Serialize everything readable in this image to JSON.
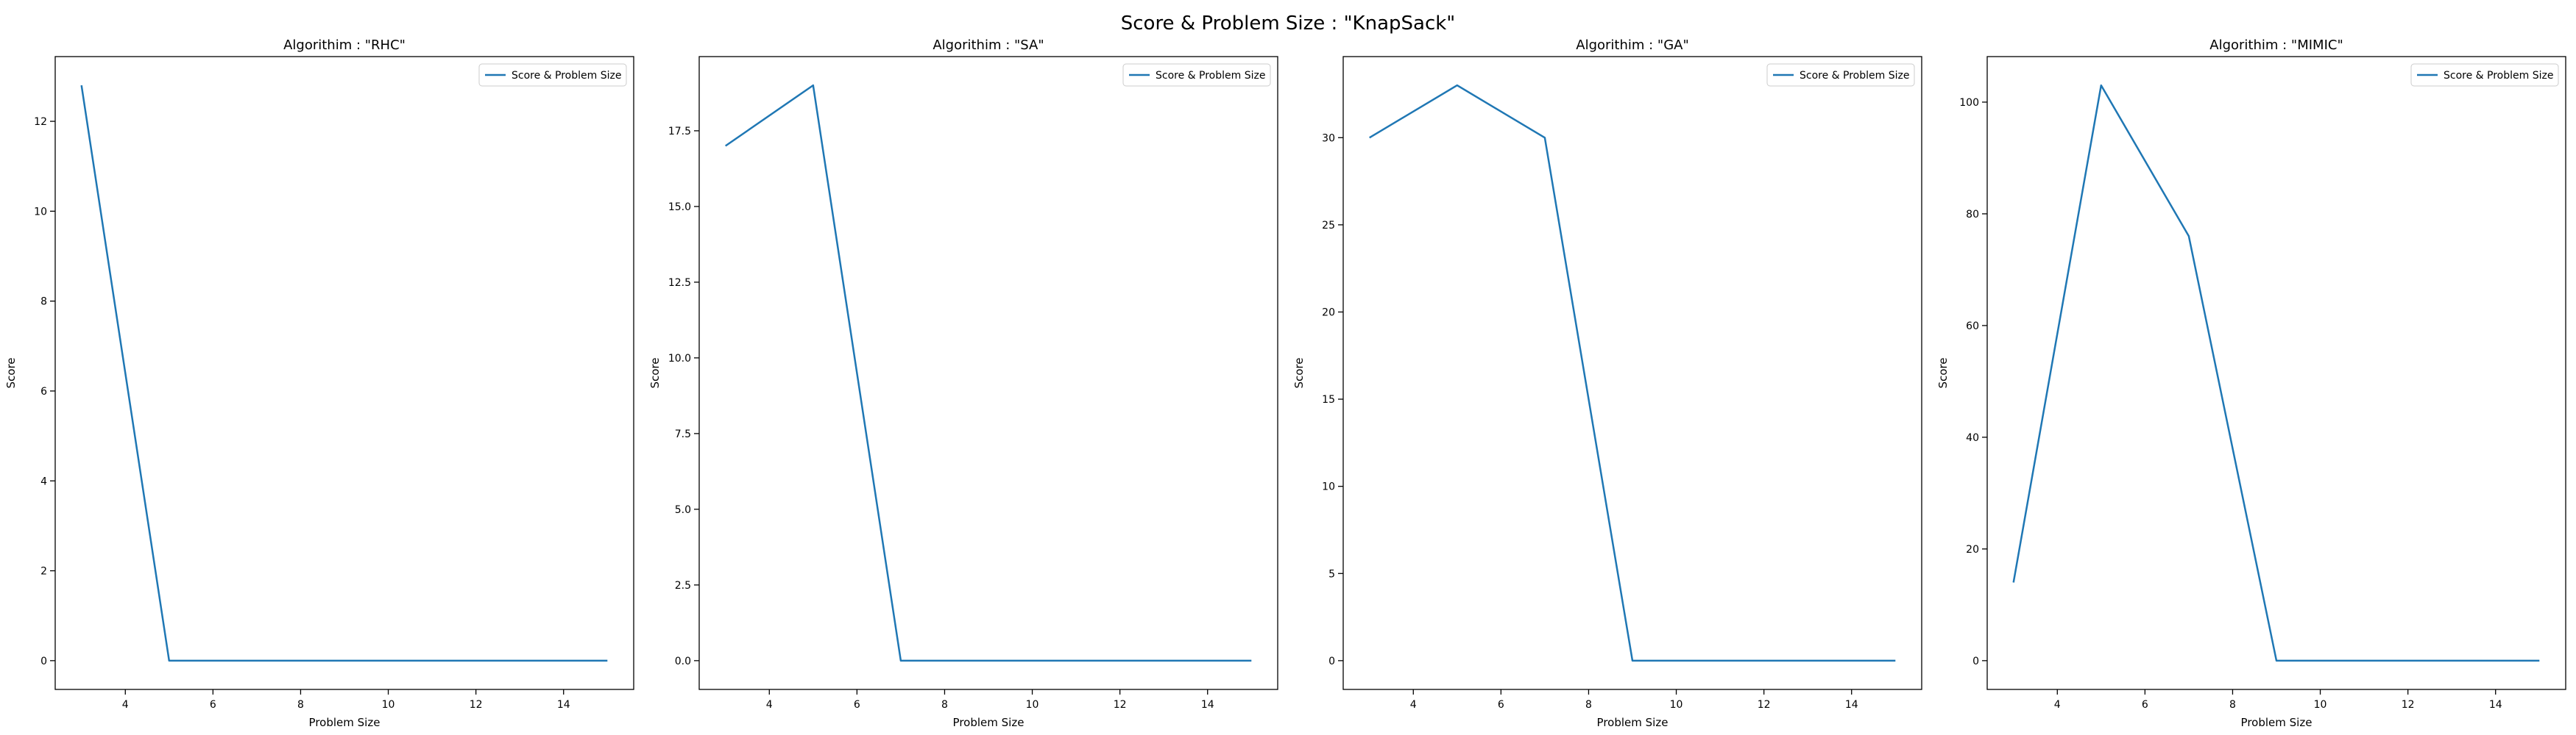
{
  "figure": {
    "title": "Score & Problem Size : \"KnapSack\""
  },
  "chart_data": [
    {
      "type": "line",
      "title": "Algorithim : \"RHC\"",
      "xlabel": "Problem Size",
      "ylabel": "Score",
      "legend": "top-right",
      "grid": false,
      "x": [
        3,
        5,
        7,
        9,
        11,
        13,
        15
      ],
      "series": [
        {
          "name": "Score & Problem Size",
          "color": "#1f77b4",
          "values": [
            12.8,
            0,
            0,
            0,
            0,
            0,
            0
          ]
        }
      ],
      "xlim": [
        2.4,
        15.6
      ],
      "ylim": [
        -0.64,
        13.44
      ],
      "xticks": [
        4,
        6,
        8,
        10,
        12,
        14
      ],
      "yticks": [
        0,
        2,
        4,
        6,
        8,
        10,
        12
      ],
      "ytick_labels": [
        "0",
        "2",
        "4",
        "6",
        "8",
        "10",
        "12"
      ]
    },
    {
      "type": "line",
      "title": "Algorithim : \"SA\"",
      "xlabel": "Problem Size",
      "ylabel": "Score",
      "legend": "top-right",
      "grid": false,
      "x": [
        3,
        5,
        7,
        9,
        11,
        13,
        15
      ],
      "series": [
        {
          "name": "Score & Problem Size",
          "color": "#1f77b4",
          "values": [
            17,
            19,
            0,
            0,
            0,
            0,
            0
          ]
        }
      ],
      "xlim": [
        2.4,
        15.6
      ],
      "ylim": [
        -0.95,
        19.95
      ],
      "xticks": [
        4,
        6,
        8,
        10,
        12,
        14
      ],
      "yticks": [
        0,
        2.5,
        5,
        7.5,
        10,
        12.5,
        15,
        17.5
      ],
      "ytick_labels": [
        "0.0",
        "2.5",
        "5.0",
        "7.5",
        "10.0",
        "12.5",
        "15.0",
        "17.5"
      ]
    },
    {
      "type": "line",
      "title": "Algorithim : \"GA\"",
      "xlabel": "Problem Size",
      "ylabel": "Score",
      "legend": "top-right",
      "grid": false,
      "x": [
        3,
        5,
        7,
        9,
        11,
        13,
        15
      ],
      "series": [
        {
          "name": "Score & Problem Size",
          "color": "#1f77b4",
          "values": [
            30,
            33,
            30,
            0,
            0,
            0,
            0
          ]
        }
      ],
      "xlim": [
        2.4,
        15.6
      ],
      "ylim": [
        -1.65,
        34.65
      ],
      "xticks": [
        4,
        6,
        8,
        10,
        12,
        14
      ],
      "yticks": [
        0,
        5,
        10,
        15,
        20,
        25,
        30
      ],
      "ytick_labels": [
        "0",
        "5",
        "10",
        "15",
        "20",
        "25",
        "30"
      ]
    },
    {
      "type": "line",
      "title": "Algorithim : \"MIMIC\"",
      "xlabel": "Problem Size",
      "ylabel": "Score",
      "legend": "top-right",
      "grid": false,
      "x": [
        3,
        5,
        7,
        9,
        11,
        13,
        15
      ],
      "series": [
        {
          "name": "Score & Problem Size",
          "color": "#1f77b4",
          "values": [
            14,
            103,
            76,
            0,
            0,
            0,
            0
          ]
        }
      ],
      "xlim": [
        2.4,
        15.6
      ],
      "ylim": [
        -5.15,
        108.15
      ],
      "xticks": [
        4,
        6,
        8,
        10,
        12,
        14
      ],
      "yticks": [
        0,
        20,
        40,
        60,
        80,
        100
      ],
      "ytick_labels": [
        "0",
        "20",
        "40",
        "60",
        "80",
        "100"
      ]
    }
  ]
}
